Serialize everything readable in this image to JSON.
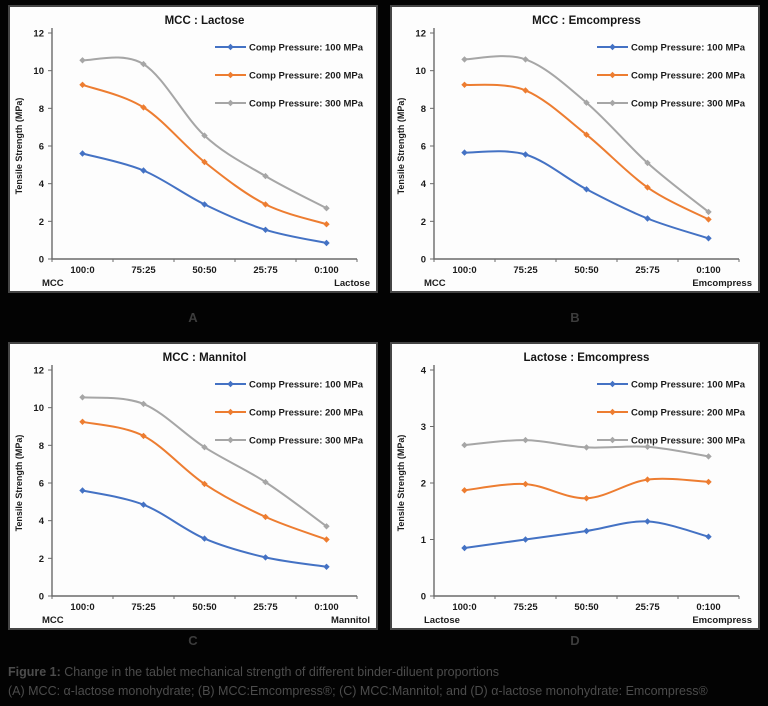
{
  "caption": {
    "label": "Figure 1:",
    "title": " Change in the tablet mechanical strength of different binder-diluent proportions",
    "line2": "(A) MCC: α-lactose monohydrate; (B) MCC:Emcompress®; (C) MCC:Mannitol; and (D) α-lactose monohydrate: Emcompress®"
  },
  "colors": {
    "series_blue": "#4472C4",
    "series_orange": "#ED7D31",
    "series_gray": "#A6A6A6",
    "panel_background": "#fdfdfd",
    "page_background": "#030303",
    "axis": "#6b6b6b",
    "text": "#1c1c1c"
  },
  "chart_data": [
    {
      "panel_label": "A",
      "type": "line",
      "title": "MCC : Lactose",
      "ylabel": "Tensile Strength (MPa)",
      "ylim": [
        0,
        12
      ],
      "yticks": [
        0,
        2,
        4,
        6,
        8,
        10,
        12
      ],
      "categories": [
        "100:0",
        "75:25",
        "50:50",
        "25:75",
        "0:100"
      ],
      "x_axis_left_sublabel": "MCC",
      "x_axis_right_sublabel": "Lactose",
      "grid": false,
      "smooth": true,
      "legend_position": "top-right",
      "series": [
        {
          "name": "Comp Pressure: 100 MPa",
          "color": "#4472C4",
          "marker": "diamond",
          "values": [
            5.6,
            4.7,
            2.9,
            1.55,
            0.85
          ]
        },
        {
          "name": "Comp Pressure: 200 MPa",
          "color": "#ED7D31",
          "marker": "diamond",
          "values": [
            9.25,
            8.05,
            5.15,
            2.9,
            1.85
          ]
        },
        {
          "name": "Comp Pressure: 300 MPa",
          "color": "#A6A6A6",
          "marker": "diamond",
          "values": [
            10.55,
            10.35,
            6.55,
            4.4,
            2.7
          ]
        }
      ]
    },
    {
      "panel_label": "B",
      "type": "line",
      "title": "MCC : Emcompress",
      "ylabel": "Tensile Strength (MPa)",
      "ylim": [
        0,
        12
      ],
      "yticks": [
        0,
        2,
        4,
        6,
        8,
        10,
        12
      ],
      "categories": [
        "100:0",
        "75:25",
        "50:50",
        "25:75",
        "0:100"
      ],
      "x_axis_left_sublabel": "MCC",
      "x_axis_right_sublabel": "Emcompress",
      "grid": false,
      "smooth": true,
      "legend_position": "top-right",
      "series": [
        {
          "name": "Comp Pressure: 100 MPa",
          "color": "#4472C4",
          "marker": "diamond",
          "values": [
            5.65,
            5.55,
            3.7,
            2.15,
            1.1
          ]
        },
        {
          "name": "Comp Pressure: 200 MPa",
          "color": "#ED7D31",
          "marker": "diamond",
          "values": [
            9.25,
            8.95,
            6.6,
            3.8,
            2.1
          ]
        },
        {
          "name": "Comp Pressure: 300 MPa",
          "color": "#A6A6A6",
          "marker": "diamond",
          "values": [
            10.6,
            10.6,
            8.3,
            5.1,
            2.5
          ]
        }
      ]
    },
    {
      "panel_label": "C",
      "type": "line",
      "title": "MCC : Mannitol",
      "ylabel": "Tensile Strength (MPa)",
      "ylim": [
        0,
        12
      ],
      "yticks": [
        0,
        2,
        4,
        6,
        8,
        10,
        12
      ],
      "categories": [
        "100:0",
        "75:25",
        "50:50",
        "25:75",
        "0:100"
      ],
      "x_axis_left_sublabel": "MCC",
      "x_axis_right_sublabel": "Mannitol",
      "grid": false,
      "smooth": true,
      "legend_position": "top-right",
      "series": [
        {
          "name": "Comp Pressure: 100 MPa",
          "color": "#4472C4",
          "marker": "diamond",
          "values": [
            5.6,
            4.85,
            3.05,
            2.05,
            1.55
          ]
        },
        {
          "name": "Comp Pressure: 200 MPa",
          "color": "#ED7D31",
          "marker": "diamond",
          "values": [
            9.25,
            8.5,
            5.95,
            4.2,
            3.0
          ]
        },
        {
          "name": "Comp Pressure: 300 MPa",
          "color": "#A6A6A6",
          "marker": "diamond",
          "values": [
            10.55,
            10.2,
            7.9,
            6.05,
            3.7
          ]
        }
      ]
    },
    {
      "panel_label": "D",
      "type": "line",
      "title": "Lactose : Emcompress",
      "ylabel": "Tensile Strength (MPa)",
      "ylim": [
        0,
        4
      ],
      "yticks": [
        0,
        1,
        2,
        3,
        4
      ],
      "categories": [
        "100:0",
        "75:25",
        "50:50",
        "25:75",
        "0:100"
      ],
      "x_axis_left_sublabel": "Lactose",
      "x_axis_right_sublabel": "Emcompress",
      "grid": false,
      "smooth": true,
      "legend_position": "top-right",
      "series": [
        {
          "name": "Comp Pressure: 100 MPa",
          "color": "#4472C4",
          "marker": "diamond",
          "values": [
            0.85,
            1.0,
            1.15,
            1.32,
            1.05
          ]
        },
        {
          "name": "Comp Pressure: 200 MPa",
          "color": "#ED7D31",
          "marker": "diamond",
          "values": [
            1.87,
            1.98,
            1.73,
            2.06,
            2.02
          ]
        },
        {
          "name": "Comp Pressure: 300 MPa",
          "color": "#A6A6A6",
          "marker": "diamond",
          "values": [
            2.67,
            2.76,
            2.63,
            2.64,
            2.47
          ]
        }
      ]
    }
  ]
}
